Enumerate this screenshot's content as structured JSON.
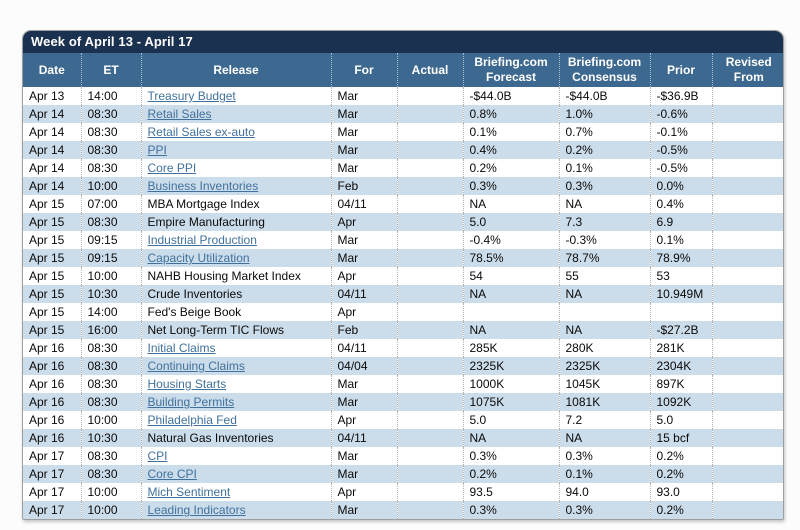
{
  "title": "Week of April 13 - April 17",
  "colors": {
    "title_bar": "#1b3150",
    "header_bg": "#3d688f",
    "alt_row": "#cbdcea",
    "link": "#41719c"
  },
  "table": {
    "columns": [
      {
        "key": "date",
        "label": "Date"
      },
      {
        "key": "et",
        "label": "ET"
      },
      {
        "key": "release",
        "label": "Release"
      },
      {
        "key": "for",
        "label": "For"
      },
      {
        "key": "actual",
        "label": "Actual"
      },
      {
        "key": "forecast",
        "label": "Briefing.com Forecast"
      },
      {
        "key": "consensus",
        "label": "Briefing.com Consensus"
      },
      {
        "key": "prior",
        "label": "Prior"
      },
      {
        "key": "revised",
        "label": "Revised From"
      }
    ],
    "rows": [
      {
        "date": "Apr 13",
        "et": "14:00",
        "release": "Treasury Budget",
        "is_link": true,
        "for": "Mar",
        "actual": "",
        "forecast": "-$44.0B",
        "consensus": "-$44.0B",
        "prior": "-$36.9B",
        "revised": ""
      },
      {
        "date": "Apr 14",
        "et": "08:30",
        "release": "Retail Sales",
        "is_link": true,
        "for": "Mar",
        "actual": "",
        "forecast": "0.8%",
        "consensus": "1.0%",
        "prior": "-0.6%",
        "revised": ""
      },
      {
        "date": "Apr 14",
        "et": "08:30",
        "release": "Retail Sales ex-auto",
        "is_link": true,
        "for": "Mar",
        "actual": "",
        "forecast": "0.1%",
        "consensus": "0.7%",
        "prior": "-0.1%",
        "revised": ""
      },
      {
        "date": "Apr 14",
        "et": "08:30",
        "release": "PPI",
        "is_link": true,
        "for": "Mar",
        "actual": "",
        "forecast": "0.4%",
        "consensus": "0.2%",
        "prior": "-0.5%",
        "revised": ""
      },
      {
        "date": "Apr 14",
        "et": "08:30",
        "release": "Core PPI",
        "is_link": true,
        "for": "Mar",
        "actual": "",
        "forecast": "0.2%",
        "consensus": "0.1%",
        "prior": "-0.5%",
        "revised": ""
      },
      {
        "date": "Apr 14",
        "et": "10:00",
        "release": "Business Inventories",
        "is_link": true,
        "for": "Feb",
        "actual": "",
        "forecast": "0.3%",
        "consensus": "0.3%",
        "prior": "0.0%",
        "revised": ""
      },
      {
        "date": "Apr 15",
        "et": "07:00",
        "release": "MBA Mortgage Index",
        "is_link": false,
        "for": "04/11",
        "actual": "",
        "forecast": "NA",
        "consensus": "NA",
        "prior": "0.4%",
        "revised": ""
      },
      {
        "date": "Apr 15",
        "et": "08:30",
        "release": "Empire Manufacturing",
        "is_link": false,
        "for": "Apr",
        "actual": "",
        "forecast": "5.0",
        "consensus": "7.3",
        "prior": "6.9",
        "revised": ""
      },
      {
        "date": "Apr 15",
        "et": "09:15",
        "release": "Industrial Production",
        "is_link": true,
        "for": "Mar",
        "actual": "",
        "forecast": "-0.4%",
        "consensus": "-0.3%",
        "prior": "0.1%",
        "revised": ""
      },
      {
        "date": "Apr 15",
        "et": "09:15",
        "release": "Capacity Utilization",
        "is_link": true,
        "for": "Mar",
        "actual": "",
        "forecast": "78.5%",
        "consensus": "78.7%",
        "prior": "78.9%",
        "revised": ""
      },
      {
        "date": "Apr 15",
        "et": "10:00",
        "release": "NAHB Housing Market Index",
        "is_link": false,
        "for": "Apr",
        "actual": "",
        "forecast": "54",
        "consensus": "55",
        "prior": "53",
        "revised": ""
      },
      {
        "date": "Apr 15",
        "et": "10:30",
        "release": "Crude Inventories",
        "is_link": false,
        "for": "04/11",
        "actual": "",
        "forecast": "NA",
        "consensus": "NA",
        "prior": "10.949M",
        "revised": ""
      },
      {
        "date": "Apr 15",
        "et": "14:00",
        "release": "Fed's Beige Book",
        "is_link": false,
        "for": "Apr",
        "actual": "",
        "forecast": "",
        "consensus": "",
        "prior": "",
        "revised": ""
      },
      {
        "date": "Apr 15",
        "et": "16:00",
        "release": "Net Long-Term TIC Flows",
        "is_link": false,
        "for": "Feb",
        "actual": "",
        "forecast": "NA",
        "consensus": "NA",
        "prior": "-$27.2B",
        "revised": ""
      },
      {
        "date": "Apr 16",
        "et": "08:30",
        "release": "Initial Claims",
        "is_link": true,
        "for": "04/11",
        "actual": "",
        "forecast": "285K",
        "consensus": "280K",
        "prior": "281K",
        "revised": ""
      },
      {
        "date": "Apr 16",
        "et": "08:30",
        "release": "Continuing Claims",
        "is_link": true,
        "for": "04/04",
        "actual": "",
        "forecast": "2325K",
        "consensus": "2325K",
        "prior": "2304K",
        "revised": ""
      },
      {
        "date": "Apr 16",
        "et": "08:30",
        "release": "Housing Starts",
        "is_link": true,
        "for": "Mar",
        "actual": "",
        "forecast": "1000K",
        "consensus": "1045K",
        "prior": "897K",
        "revised": ""
      },
      {
        "date": "Apr 16",
        "et": "08:30",
        "release": "Building Permits",
        "is_link": true,
        "for": "Mar",
        "actual": "",
        "forecast": "1075K",
        "consensus": "1081K",
        "prior": "1092K",
        "revised": ""
      },
      {
        "date": "Apr 16",
        "et": "10:00",
        "release": "Philadelphia Fed",
        "is_link": true,
        "for": "Apr",
        "actual": "",
        "forecast": "5.0",
        "consensus": "7.2",
        "prior": "5.0",
        "revised": ""
      },
      {
        "date": "Apr 16",
        "et": "10:30",
        "release": "Natural Gas Inventories",
        "is_link": false,
        "for": "04/11",
        "actual": "",
        "forecast": "NA",
        "consensus": "NA",
        "prior": "15 bcf",
        "revised": ""
      },
      {
        "date": "Apr 17",
        "et": "08:30",
        "release": "CPI",
        "is_link": true,
        "for": "Mar",
        "actual": "",
        "forecast": "0.3%",
        "consensus": "0.3%",
        "prior": "0.2%",
        "revised": ""
      },
      {
        "date": "Apr 17",
        "et": "08:30",
        "release": "Core CPI",
        "is_link": true,
        "for": "Mar",
        "actual": "",
        "forecast": "0.2%",
        "consensus": "0.1%",
        "prior": "0.2%",
        "revised": ""
      },
      {
        "date": "Apr 17",
        "et": "10:00",
        "release": "Mich Sentiment",
        "is_link": true,
        "for": "Apr",
        "actual": "",
        "forecast": "93.5",
        "consensus": "94.0",
        "prior": "93.0",
        "revised": ""
      },
      {
        "date": "Apr 17",
        "et": "10:00",
        "release": "Leading Indicators",
        "is_link": true,
        "for": "Mar",
        "actual": "",
        "forecast": "0.3%",
        "consensus": "0.3%",
        "prior": "0.2%",
        "revised": ""
      }
    ]
  }
}
